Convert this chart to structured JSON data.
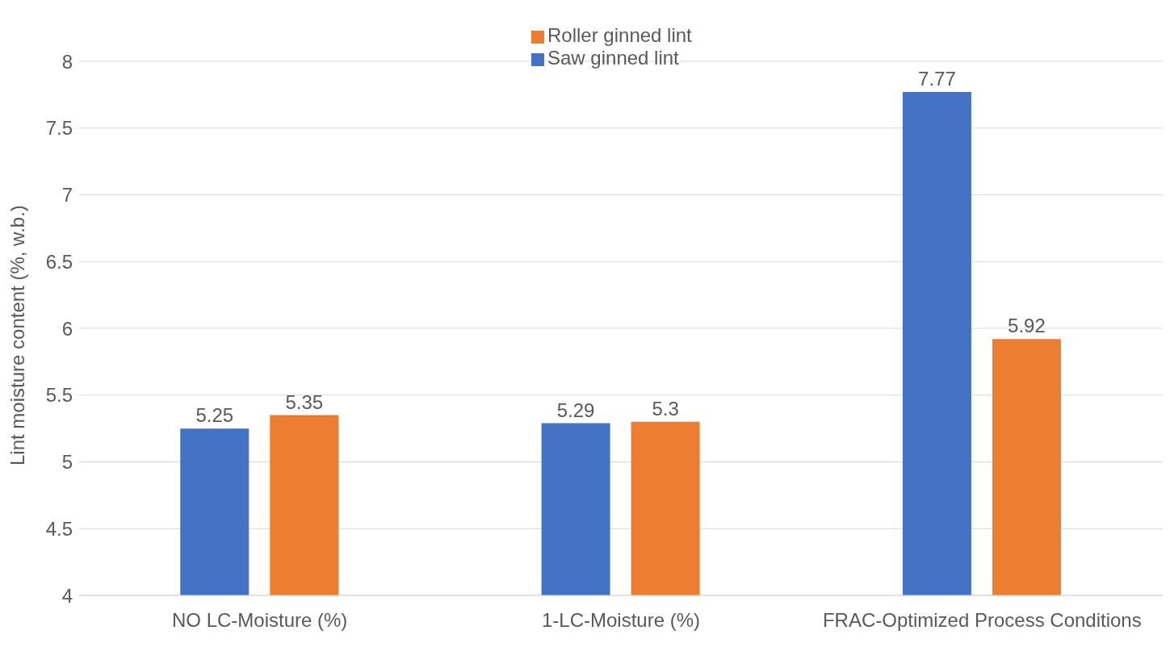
{
  "chart_data": {
    "type": "bar",
    "ylabel": "Lint moisture content (%, w.b.)",
    "categories": [
      "NO LC-Moisture (%)",
      "1-LC-Moisture (%)",
      "FRAC-Optimized Process Conditions"
    ],
    "series": [
      {
        "name": "Saw ginned lint",
        "color": "#4472c4",
        "values": [
          5.25,
          5.29,
          7.77
        ]
      },
      {
        "name": "Roller ginned lint",
        "color": "#ed7d31",
        "values": [
          5.35,
          5.3,
          5.92
        ]
      }
    ],
    "ylim": [
      4,
      8
    ],
    "yticks": [
      4,
      4.5,
      5,
      5.5,
      6,
      6.5,
      7,
      7.5,
      8
    ],
    "grid": "y",
    "legend": "top",
    "data_labels": true
  }
}
